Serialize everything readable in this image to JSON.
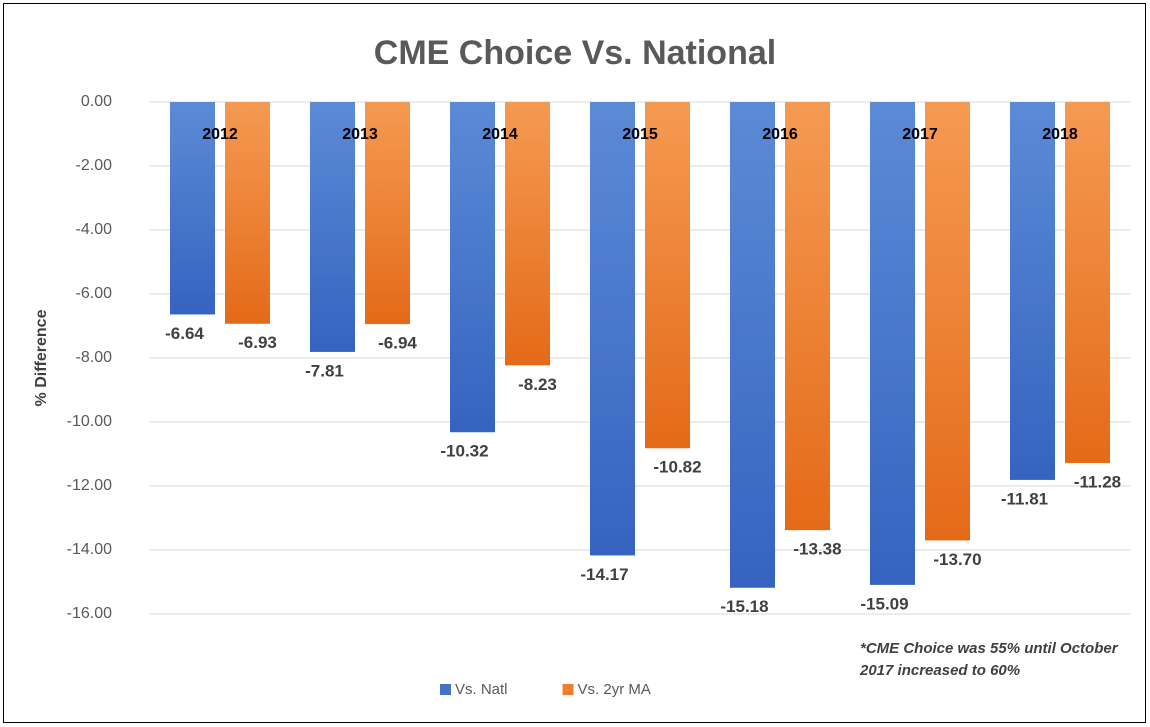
{
  "chart_data": {
    "type": "bar",
    "title": "CME Choice Vs. National",
    "y_label": "% Difference",
    "categories": [
      "2012",
      "2013",
      "2014",
      "2015",
      "2016",
      "2017",
      "2018"
    ],
    "series": [
      {
        "name": "Vs. Natl",
        "color": "#4472c4",
        "values": [
          -6.64,
          -7.81,
          -10.32,
          -14.17,
          -15.18,
          -15.09,
          -11.81
        ],
        "value_labels": [
          "-6.64",
          "-7.81",
          "-10.32",
          "-14.17",
          "-15.18",
          "-15.09",
          "-11.81"
        ]
      },
      {
        "name": "Vs. 2yr MA",
        "color": "#ed7d31",
        "values": [
          -6.93,
          -6.94,
          -8.23,
          -10.82,
          -13.38,
          -13.7,
          -11.28
        ],
        "value_labels": [
          "-6.93",
          "-6.94",
          "-8.23",
          "-10.82",
          "-13.38",
          "-13.70",
          "-11.28"
        ]
      }
    ],
    "ylim": [
      -16,
      0
    ],
    "yticks": [
      {
        "value": 0,
        "label": "0.00"
      },
      {
        "value": -2,
        "label": "-2.00"
      },
      {
        "value": -4,
        "label": "-4.00"
      },
      {
        "value": -6,
        "label": "-6.00"
      },
      {
        "value": -8,
        "label": "-8.00"
      },
      {
        "value": -10,
        "label": "-10.00"
      },
      {
        "value": -12,
        "label": "-12.00"
      },
      {
        "value": -14,
        "label": "-14.00"
      },
      {
        "value": -16,
        "label": "-16.00"
      }
    ],
    "grid": true,
    "legend": "bottom",
    "annotation": "*CME Choice was 55% until October 2017 increased to 60%"
  }
}
